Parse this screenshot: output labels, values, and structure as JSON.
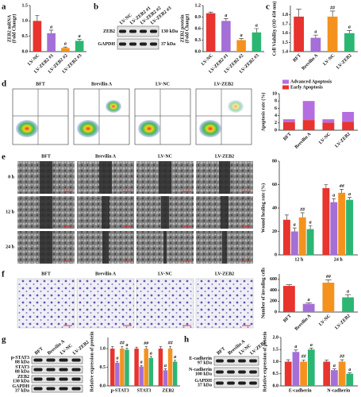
{
  "panel_labels": [
    "a",
    "b",
    "c",
    "d",
    "e",
    "f",
    "g",
    "h"
  ],
  "blots": [
    {
      "lanes": [
        "LV-NC",
        "LV-ZEB2 #1",
        "LV-ZEB2 #2",
        "LV-ZEB2 #3"
      ],
      "rows": [
        {
          "name": "ZEB2",
          "kda": "130 kDa"
        },
        {
          "name": "GAPDH",
          "kda": "37 kDa"
        }
      ]
    },
    {
      "lanes": [
        "BFT",
        "Brevilin A",
        "LV-NC",
        "LV-ZEB2"
      ],
      "rows": [
        {
          "name": "p-STAT3",
          "kda": "88 kDa"
        },
        {
          "name": "STAT3",
          "kda": "88 kDa"
        },
        {
          "name": "ZEB2",
          "kda": "130 kDa"
        },
        {
          "name": "GAPDH",
          "kda": "37 kDa"
        }
      ]
    },
    {
      "lanes": [
        "BFT",
        "Brevilin A",
        "LV-NC",
        "LV-ZEB2"
      ],
      "rows": [
        {
          "name": "E-cadherin",
          "kda": "97 kDa"
        },
        {
          "name": "N-cadherin",
          "kda": "100 kDa"
        },
        {
          "name": "GAPDH",
          "kda": "37 kDa"
        }
      ]
    }
  ],
  "images": {
    "flow": {
      "columns": [
        "BFT",
        "Brevilin A",
        "LV-NC",
        "LV-ZEB2"
      ]
    },
    "wound": {
      "columns": [
        "BFT",
        "Brevilin A",
        "LV-NC",
        "LV-ZEB2"
      ],
      "rows": [
        "0 h",
        "12 h",
        "24 h"
      ]
    },
    "invasion": {
      "columns": [
        "BFT",
        "Brevilin A",
        "LV-NC",
        "LV-ZEB2"
      ]
    }
  },
  "chart_data": [
    {
      "type": "bar",
      "ylabel": [
        "ZEB2 mRNA",
        "(Fold Change)"
      ],
      "categories": [
        "LV-NC",
        "LV-ZEB2 #1",
        "LV-ZEB2 #2",
        "LV-ZEB2 #3"
      ],
      "values": [
        1.0,
        0.6,
        0.12,
        0.35
      ],
      "errors": [
        0.18,
        0.1,
        0.03,
        0.05
      ],
      "annotations": [
        null,
        "a",
        "a",
        "a"
      ],
      "colors": [
        "#e8332e",
        "#a46fd6",
        "#f5921e",
        "#2cb673"
      ],
      "ylim": [
        0,
        1.5
      ],
      "yticks": [
        {
          "value": 0,
          "label": "0.0"
        },
        {
          "value": 0.5,
          "label": "0.5"
        },
        {
          "value": 1,
          "label": "1.0"
        },
        {
          "value": 1.5,
          "label": "1.5"
        }
      ]
    },
    {
      "type": "bar",
      "ylabel": [
        "ZEB2 protein",
        "(Fold Change)"
      ],
      "categories": [
        "LV-NC",
        "LV-ZEB2 #1",
        "LV-ZEB2 #2",
        "LV-ZEB2 #3"
      ],
      "values": [
        1.0,
        0.8,
        0.3,
        0.5
      ],
      "errors": [
        0.03,
        0.06,
        0.04,
        0.1
      ],
      "annotations": [
        null,
        "a",
        "a",
        "a"
      ],
      "colors": [
        "#e8332e",
        "#a46fd6",
        "#f5921e",
        "#2cb673"
      ],
      "ylim": [
        0,
        1.2
      ],
      "yticks": [
        {
          "value": 0,
          "label": "0.0"
        },
        {
          "value": 0.3,
          "label": "0.3"
        },
        {
          "value": 0.6,
          "label": "0.6"
        },
        {
          "value": 0.9,
          "label": "0.9"
        },
        {
          "value": 1.2,
          "label": "1.2"
        }
      ]
    },
    {
      "type": "bar",
      "ylabel": [
        "Cell Viability (OD 450 nm)"
      ],
      "categories": [
        "BFT",
        "Brevilin A",
        "LV-NC",
        "LV-ZEB2"
      ],
      "values": [
        1.78,
        1.55,
        1.78,
        1.6
      ],
      "errors": [
        0.08,
        0.03,
        0.06,
        0.03
      ],
      "annotations": [
        null,
        "a",
        "##",
        "a"
      ],
      "colors": [
        "#e8332e",
        "#a46fd6",
        "#f5921e",
        "#2cb673"
      ],
      "ylim": [
        1.4,
        1.9
      ],
      "yticks": [
        1.4,
        1.5,
        1.6,
        1.7,
        1.8
      ]
    },
    {
      "type": "bar",
      "stacked": true,
      "ylabel": [
        "Apoptosis rate (%)"
      ],
      "categories": [
        "BFT",
        "Brevilin A",
        "LV-NC",
        "LV-ZEB2"
      ],
      "series": [
        {
          "name": "Early Apoptosis",
          "color": "#e8332e",
          "values": [
            2.2,
            2.8,
            2.1,
            2.3
          ]
        },
        {
          "name": "Advanced Apoptosis",
          "color": "#b56ee0",
          "values": [
            0.8,
            5.2,
            0.9,
            2.7
          ]
        }
      ],
      "legend": "top",
      "ylim": [
        0,
        10
      ],
      "yticks": [
        0,
        2,
        4,
        6,
        8,
        10
      ]
    },
    {
      "type": "bar",
      "ylabel": [
        "Wound healing rate (%)"
      ],
      "categories": [
        "12 h",
        "24 h"
      ],
      "series": [
        {
          "color": "#e8332e",
          "values": [
            30,
            57
          ],
          "errors": [
            4,
            3
          ],
          "annotations": [
            null,
            null
          ]
        },
        {
          "color": "#a46fd6",
          "values": [
            20,
            45
          ],
          "errors": [
            3,
            3
          ],
          "annotations": [
            "a",
            "a"
          ]
        },
        {
          "color": "#f5921e",
          "values": [
            32,
            53
          ],
          "errors": [
            4,
            3
          ],
          "annotations": [
            "##",
            "##"
          ]
        },
        {
          "color": "#2cb673",
          "values": [
            22,
            47
          ],
          "errors": [
            3,
            2
          ],
          "annotations": [
            "a",
            "a"
          ]
        }
      ],
      "ylim": [
        0,
        80
      ],
      "yticks": [
        0,
        20,
        40,
        60,
        80
      ]
    },
    {
      "type": "bar",
      "ylabel": [
        "Number of invading cells"
      ],
      "categories": [
        "BFT",
        "Brevilin A",
        "LV-NC",
        "LV-ZEB2"
      ],
      "values": [
        480,
        150,
        540,
        270
      ],
      "errors": [
        20,
        15,
        50,
        50
      ],
      "annotations": [
        null,
        "a",
        "##",
        "a"
      ],
      "colors": [
        "#e8332e",
        "#a46fd6",
        "#f5921e",
        "#2cb673"
      ],
      "ylim": [
        0,
        700
      ],
      "yticks": [
        0,
        200,
        400,
        600
      ]
    },
    {
      "type": "bar",
      "ylabel": [
        "Relative expression of protein"
      ],
      "categories": [
        "p-STAT3",
        "STAT3",
        "ZEB2"
      ],
      "series": [
        {
          "color": "#e8332e",
          "values": [
            1.0,
            1.0,
            1.0
          ],
          "errors": [
            0.05,
            0.04,
            0.05
          ],
          "annotations": [
            null,
            null,
            null
          ]
        },
        {
          "color": "#a46fd6",
          "values": [
            0.62,
            0.52,
            0.42
          ],
          "errors": [
            0.04,
            0.03,
            0.04
          ],
          "annotations": [
            "a",
            "a",
            "a"
          ]
        },
        {
          "color": "#f5921e",
          "values": [
            1.0,
            1.0,
            1.0
          ],
          "errors": [
            0.06,
            0.05,
            0.06
          ],
          "annotations": [
            "##",
            "##",
            "##"
          ]
        },
        {
          "color": "#2cb673",
          "values": [
            0.97,
            0.75,
            0.65
          ],
          "errors": [
            0.04,
            0.04,
            0.04
          ],
          "annotations": [
            "a",
            "a",
            "a"
          ]
        }
      ],
      "ylim": [
        0,
        1.3
      ],
      "yticks": [
        {
          "value": 0,
          "label": "0.0"
        },
        {
          "value": 0.5,
          "label": "0.5"
        },
        {
          "value": 1,
          "label": "1.0"
        }
      ]
    },
    {
      "type": "bar",
      "ylabel": [
        "Relative expression of protein"
      ],
      "categories": [
        "E-cadherin",
        "N-cadherin"
      ],
      "series": [
        {
          "color": "#e8332e",
          "values": [
            1.0,
            1.0
          ],
          "errors": [
            0.08,
            0.06
          ],
          "annotations": [
            null,
            null
          ]
        },
        {
          "color": "#a46fd6",
          "values": [
            1.4,
            0.65
          ],
          "errors": [
            0.08,
            0.05
          ],
          "annotations": [
            "a",
            "a"
          ]
        },
        {
          "color": "#f5921e",
          "values": [
            1.0,
            1.0
          ],
          "errors": [
            0.07,
            0.08
          ],
          "annotations": [
            "##",
            "##"
          ]
        },
        {
          "color": "#2cb673",
          "values": [
            1.5,
            0.5
          ],
          "errors": [
            0.06,
            0.04
          ],
          "annotations": [
            "a",
            "a"
          ]
        }
      ],
      "ylim": [
        0,
        2
      ],
      "yticks": [
        {
          "value": 0,
          "label": "0.0"
        },
        {
          "value": 0.5,
          "label": "0.5"
        },
        {
          "value": 1,
          "label": "1.0"
        },
        {
          "value": 1.5,
          "label": "1.5"
        },
        {
          "value": 2,
          "label": "2.0"
        }
      ]
    }
  ]
}
